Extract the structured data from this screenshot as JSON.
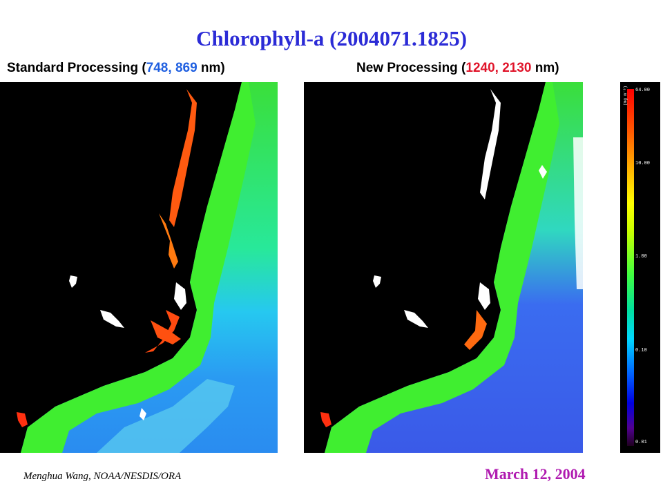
{
  "title": "Chlorophyll-a (2004071.1825)",
  "panels": {
    "left": {
      "label_prefix": "Standard Processing (",
      "band1": "748",
      "sep": ", ",
      "band2": "869",
      "label_suffix": " nm)",
      "band_color": "#1f5fe0"
    },
    "right": {
      "label_prefix": "New Processing (",
      "band1": "1240",
      "sep": ", ",
      "band2": "2130",
      "label_suffix": " nm)",
      "band_color": "#e0142a"
    }
  },
  "colorbar": {
    "unit": "(mg m⁻³)",
    "ticks": [
      "64.00",
      "10.00",
      "1.00",
      "0.10",
      "0.01"
    ],
    "colors": [
      "#ff0000",
      "#ffb000",
      "#40ff40",
      "#00d8ff",
      "#0000e0",
      "#200020"
    ]
  },
  "footer": {
    "author": "Menghua Wang, NOAA/NESDIS/ORA",
    "date": "March 12, 2004"
  }
}
